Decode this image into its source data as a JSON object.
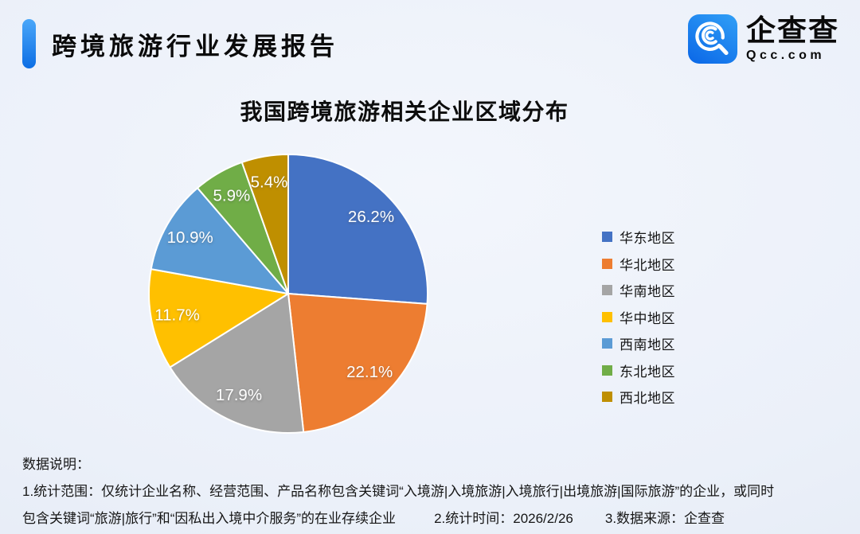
{
  "header": {
    "report_title": "跨境旅游行业发展报告"
  },
  "logo": {
    "name": "企查查",
    "domain": "Qcc.com"
  },
  "theme": {
    "background": "#ebf0f9",
    "accent_blue_light": "#4aa7f9",
    "accent_blue_dark": "#0d6ee4",
    "logo_blue_light": "#2e9bf5",
    "logo_blue_dark": "#0d6be8",
    "text_color": "#111111"
  },
  "chart_data": {
    "type": "pie",
    "title": "我国跨境旅游相关企业区域分布",
    "unit": "%",
    "legend_position": "right",
    "start_angle_deg": 0,
    "direction": "clockwise",
    "slice_border_color": "#ffffff",
    "label_color": "#ffffff",
    "series": [
      {
        "name": "华东地区",
        "value": 26.2,
        "color": "#4472C4"
      },
      {
        "name": "华北地区",
        "value": 22.1,
        "color": "#ED7D31"
      },
      {
        "name": "华南地区",
        "value": 17.9,
        "color": "#A5A5A5"
      },
      {
        "name": "华中地区",
        "value": 11.7,
        "color": "#FFC000"
      },
      {
        "name": "西南地区",
        "value": 10.9,
        "color": "#5B9BD5"
      },
      {
        "name": "东北地区",
        "value": 5.9,
        "color": "#70AD47"
      },
      {
        "name": "西北地区",
        "value": 5.4,
        "color": "#BF8F00"
      }
    ]
  },
  "notes": {
    "heading": "数据说明：",
    "line1": "1.统计范围：仅统计企业名称、经营范围、产品名称包含关键词“入境游|入境旅游|入境旅行|出境旅游|国际旅游”的企业，或同时",
    "line2": "包含关键词“旅游|旅行”和“因私出入境中介服务”的在业存续企业",
    "time": "2.统计时间：2026/2/26",
    "source": "3.数据来源：企查查"
  }
}
